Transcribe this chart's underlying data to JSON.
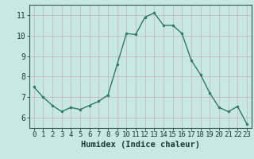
{
  "x": [
    0,
    1,
    2,
    3,
    4,
    5,
    6,
    7,
    8,
    9,
    10,
    11,
    12,
    13,
    14,
    15,
    16,
    17,
    18,
    19,
    20,
    21,
    22,
    23
  ],
  "y": [
    7.5,
    7.0,
    6.6,
    6.3,
    6.5,
    6.4,
    6.6,
    6.8,
    7.1,
    8.6,
    10.1,
    10.05,
    10.9,
    11.1,
    10.5,
    10.5,
    10.1,
    8.8,
    8.1,
    7.2,
    6.5,
    6.3,
    6.55,
    5.7
  ],
  "xlabel": "Humidex (Indice chaleur)",
  "ylim": [
    5.5,
    11.5
  ],
  "xlim": [
    -0.5,
    23.5
  ],
  "yticks": [
    6,
    7,
    8,
    9,
    10,
    11
  ],
  "xticks": [
    0,
    1,
    2,
    3,
    4,
    5,
    6,
    7,
    8,
    9,
    10,
    11,
    12,
    13,
    14,
    15,
    16,
    17,
    18,
    19,
    20,
    21,
    22,
    23
  ],
  "line_color": "#2d7a6a",
  "marker_color": "#2d7a6a",
  "bg_color": "#c8e8e2",
  "grid_color": "#b8d8d2",
  "border_color": "#2d5a52",
  "tick_color": "#1a3d35",
  "xlabel_fontsize": 7.5,
  "tick_fontsize": 6.5,
  "ytick_fontsize": 7.0
}
